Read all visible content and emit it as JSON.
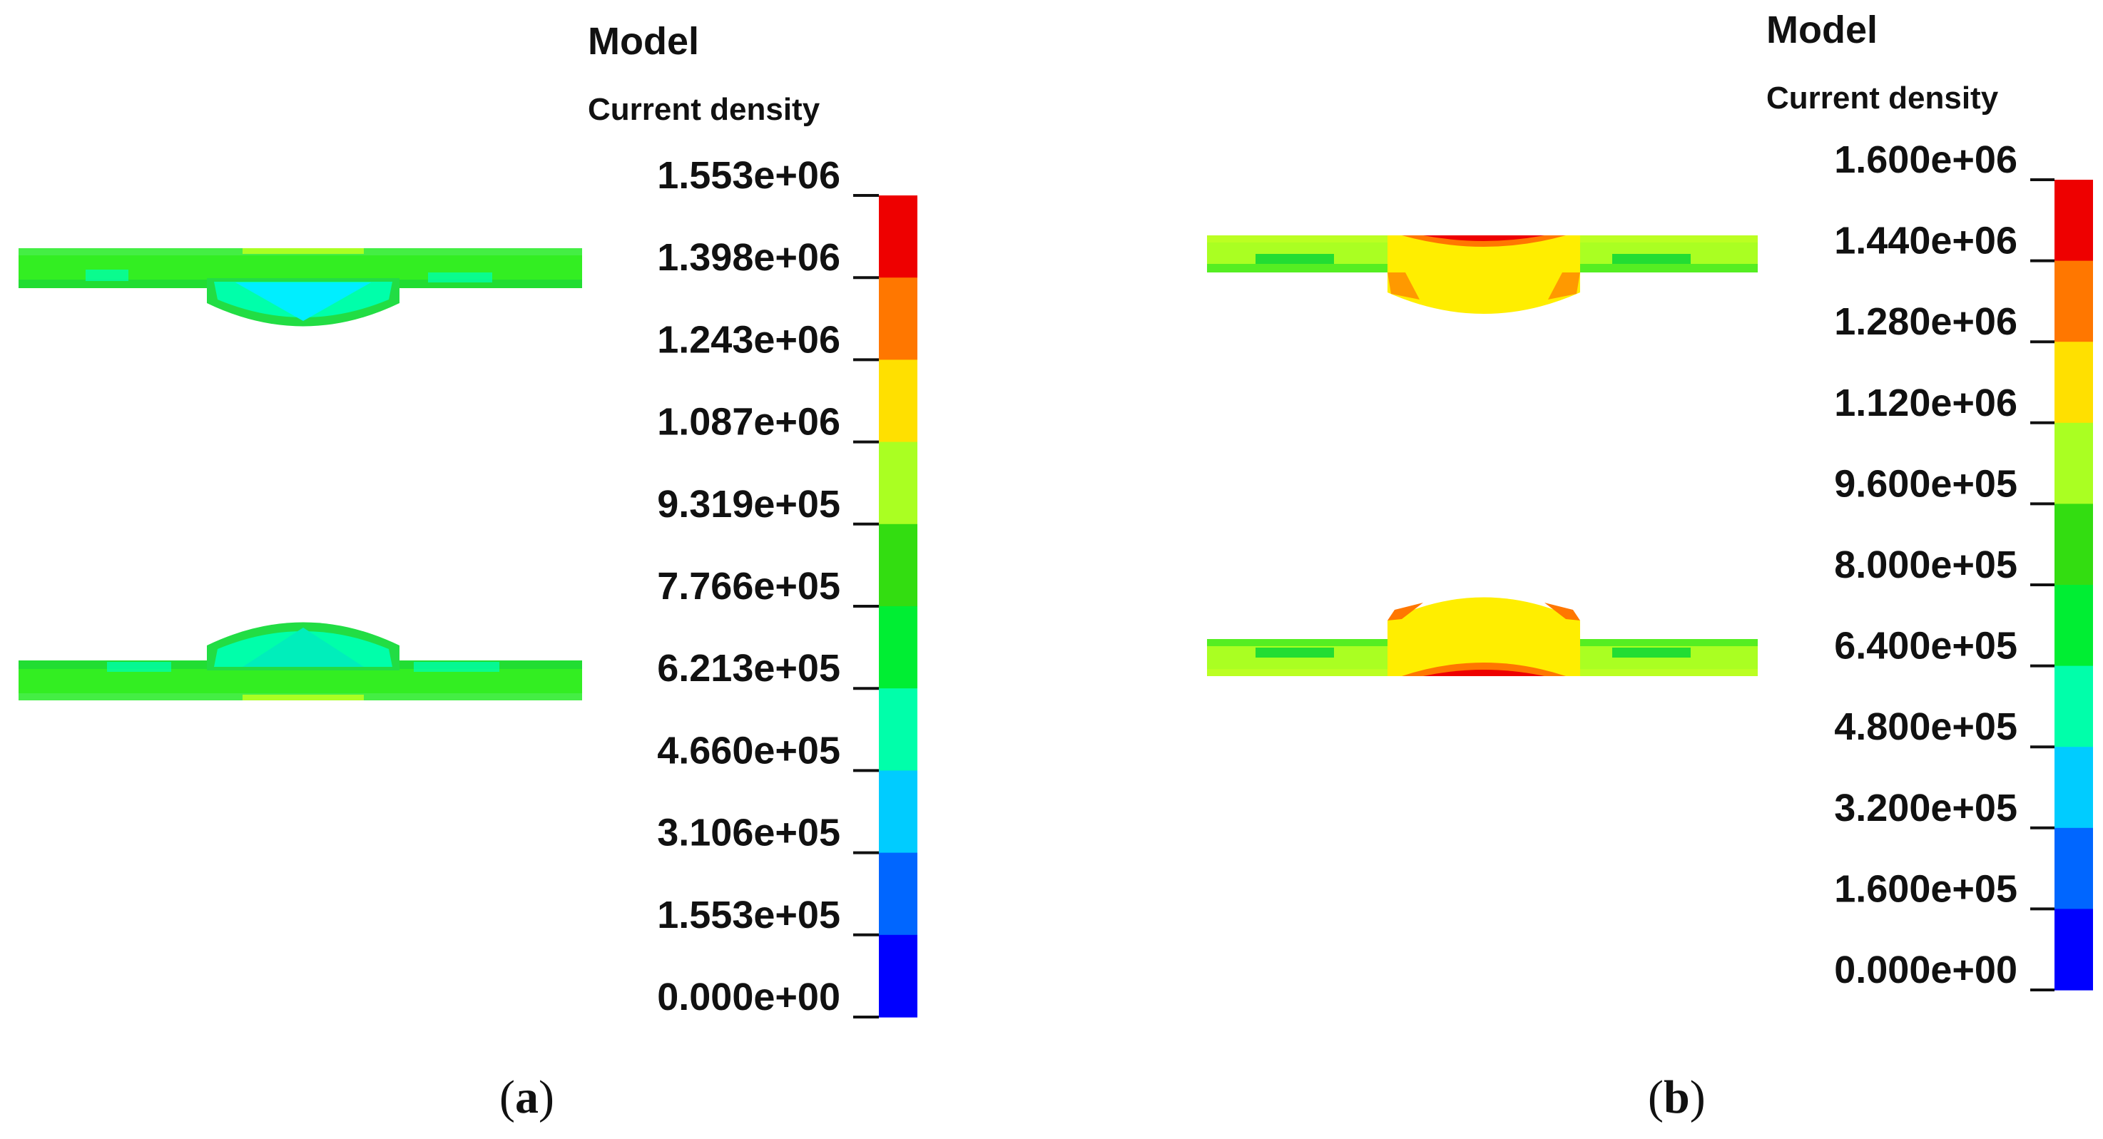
{
  "palette": [
    "#0000ff",
    "#0066ff",
    "#00ccff",
    "#00ffaa",
    "#00ee33",
    "#33dd11",
    "#aaff22",
    "#ffe000",
    "#ff7700",
    "#ee0000"
  ],
  "panels": [
    {
      "id": "a",
      "caption_open": "(",
      "caption_letter": "a",
      "caption_close": ")",
      "legend": {
        "title": "Model",
        "subtitle": "Current density",
        "ticks": [
          "1.553e+06",
          "1.398e+06",
          "1.243e+06",
          "1.087e+06",
          "9.319e+05",
          "7.766e+05",
          "6.213e+05",
          "4.660e+05",
          "3.106e+05",
          "1.553e+05",
          "0.000e+00"
        ]
      },
      "plate_color_level": 5,
      "nugget_color_level": 2
    },
    {
      "id": "b",
      "caption_open": "(",
      "caption_letter": "b",
      "caption_close": ")",
      "legend": {
        "title": "Model",
        "subtitle": "Current density",
        "ticks": [
          "1.600e+06",
          "1.440e+06",
          "1.280e+06",
          "1.120e+06",
          "9.600e+05",
          "8.000e+05",
          "6.400e+05",
          "4.800e+05",
          "3.200e+05",
          "1.600e+05",
          "0.000e+00"
        ]
      },
      "plate_color_level": 6,
      "nugget_color_level": 7
    }
  ]
}
